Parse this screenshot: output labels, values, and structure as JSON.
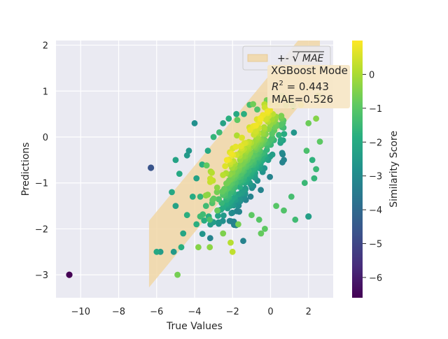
{
  "chart_data": {
    "type": "scatter",
    "xlabel": "True Values",
    "ylabel": "Predictions",
    "xlim": [
      -11.3,
      3.3
    ],
    "ylim": [
      -3.5,
      2.1
    ],
    "xticks": [
      -10,
      -8,
      -6,
      -4,
      -2,
      0,
      2
    ],
    "xtick_labels": [
      "−10",
      "−8",
      "−6",
      "−4",
      "−2",
      "0",
      "2"
    ],
    "yticks": [
      -3,
      -2,
      -1,
      0,
      1,
      2
    ],
    "ytick_labels": [
      "−3",
      "−2",
      "−1",
      "0",
      "1",
      "2"
    ],
    "grid": true,
    "background_color": "#eaeaf2",
    "band": {
      "label": "+- √MAE",
      "label_prefix": "+- ",
      "label_math": "MAE",
      "half_width": 0.725,
      "fit_line": {
        "x_start": -6.4,
        "x_end": 2.6,
        "y_at_start": -2.55,
        "slope": 0.5
      },
      "color": "#f1d7a6"
    },
    "legend_position": "upper right",
    "annotation": {
      "model": "XGBoost Mode",
      "r2_label": "R",
      "r2_exp": "2",
      "r2_value": " = 0.443",
      "mae": "MAE=0.526"
    },
    "colorbar": {
      "label": "Similarity Score",
      "colormap": "viridis",
      "range": [
        -6.6,
        1.0
      ],
      "ticks": [
        0,
        -1,
        -2,
        -3,
        -4,
        -5,
        -6
      ],
      "tick_labels": [
        "0",
        "−1",
        "−2",
        "−3",
        "−4",
        "−5",
        "−6"
      ]
    },
    "outliers": [
      {
        "x": -10.6,
        "y": -3.0,
        "score": -6.6
      },
      {
        "x": -6.3,
        "y": -0.67,
        "score": -4.6
      },
      {
        "x": 2.0,
        "y": -1.73,
        "score": -2.3
      }
    ],
    "series": [
      {
        "x": 2.5,
        "y": 0.9,
        "score": -0.2
      },
      {
        "x": 1.6,
        "y": 0.7,
        "score": 0.5
      },
      {
        "x": -0.2,
        "y": 0.8,
        "score": -0.6
      },
      {
        "x": -2.5,
        "y": 0.3,
        "score": -2.2
      },
      {
        "x": -4.0,
        "y": 0.3,
        "score": -2.8
      },
      {
        "x": -4.3,
        "y": -0.3,
        "score": -2.6
      },
      {
        "x": -4.4,
        "y": -0.4,
        "score": -2.5
      },
      {
        "x": -5.0,
        "y": -0.5,
        "score": -2.2
      },
      {
        "x": -4.8,
        "y": -0.8,
        "score": -2.0
      },
      {
        "x": -5.2,
        "y": -1.2,
        "score": -2.0
      },
      {
        "x": -5.0,
        "y": -1.5,
        "score": -2.2
      },
      {
        "x": -4.4,
        "y": -1.7,
        "score": -1.8
      },
      {
        "x": -4.6,
        "y": -2.1,
        "score": -2.1
      },
      {
        "x": -5.1,
        "y": -2.5,
        "score": -2.5
      },
      {
        "x": -4.7,
        "y": -2.4,
        "score": -1.8
      },
      {
        "x": -5.8,
        "y": -2.5,
        "score": -2.4
      },
      {
        "x": -6.0,
        "y": -2.5,
        "score": -2.0
      },
      {
        "x": -4.9,
        "y": -3.0,
        "score": -0.6
      },
      {
        "x": -3.8,
        "y": -2.4,
        "score": -0.4
      },
      {
        "x": -3.2,
        "y": -2.4,
        "score": -0.3
      },
      {
        "x": -2.1,
        "y": -2.3,
        "score": 0.2
      },
      {
        "x": -2.0,
        "y": -2.5,
        "score": 0.3
      },
      {
        "x": -2.5,
        "y": -2.1,
        "score": -0.5
      },
      {
        "x": -1.7,
        "y": -1.9,
        "score": -0.6
      },
      {
        "x": -1.0,
        "y": -1.7,
        "score": -0.9
      },
      {
        "x": -0.6,
        "y": -1.8,
        "score": -1.0
      },
      {
        "x": -0.5,
        "y": -2.1,
        "score": -0.8
      },
      {
        "x": 0.3,
        "y": -1.5,
        "score": -1.0
      },
      {
        "x": 0.7,
        "y": -1.6,
        "score": -1.1
      },
      {
        "x": 1.1,
        "y": -1.3,
        "score": -1.3
      },
      {
        "x": 1.8,
        "y": -1.0,
        "score": -1.5
      },
      {
        "x": 2.3,
        "y": -0.9,
        "score": -1.6
      },
      {
        "x": 2.4,
        "y": -0.7,
        "score": -1.5
      },
      {
        "x": 2.2,
        "y": -0.5,
        "score": -1.7
      },
      {
        "x": 1.9,
        "y": -0.3,
        "score": -1.2
      },
      {
        "x": 2.6,
        "y": -0.1,
        "score": -0.9
      },
      {
        "x": 2.0,
        "y": 0.3,
        "score": -0.7
      },
      {
        "x": 2.4,
        "y": 0.4,
        "score": -0.4
      },
      {
        "x": -3.9,
        "y": -0.9,
        "score": -2.2
      },
      {
        "x": -3.6,
        "y": -0.6,
        "score": -1.8
      },
      {
        "x": -3.3,
        "y": -0.3,
        "score": -2.0
      },
      {
        "x": -3.0,
        "y": 0.0,
        "score": -1.6
      },
      {
        "x": -2.7,
        "y": 0.1,
        "score": -1.4
      },
      {
        "x": -3.7,
        "y": -1.3,
        "score": -1.6
      },
      {
        "x": -3.4,
        "y": -1.5,
        "score": -1.4
      },
      {
        "x": -3.9,
        "y": -1.9,
        "score": -1.8
      },
      {
        "x": -3.2,
        "y": -1.8,
        "score": -1.2
      },
      {
        "x": -2.8,
        "y": -1.6,
        "score": -0.8
      },
      {
        "x": -4.1,
        "y": -1.3,
        "score": -1.9
      },
      {
        "x": -1.4,
        "y": 0.5,
        "score": -1.8
      },
      {
        "x": -1.1,
        "y": 0.7,
        "score": -1.3
      },
      {
        "x": -0.7,
        "y": 0.6,
        "score": -1.1
      },
      {
        "x": -1.8,
        "y": 0.5,
        "score": -2.0
      },
      {
        "x": -2.2,
        "y": 0.4,
        "score": -1.8
      },
      {
        "x": 1.0,
        "y": 0.8,
        "score": -0.5
      },
      {
        "x": 0.6,
        "y": 0.9,
        "score": -0.8
      },
      {
        "x": 1.3,
        "y": -1.8,
        "score": -1.4
      },
      {
        "x": -0.3,
        "y": -2.0,
        "score": -0.9
      }
    ]
  }
}
